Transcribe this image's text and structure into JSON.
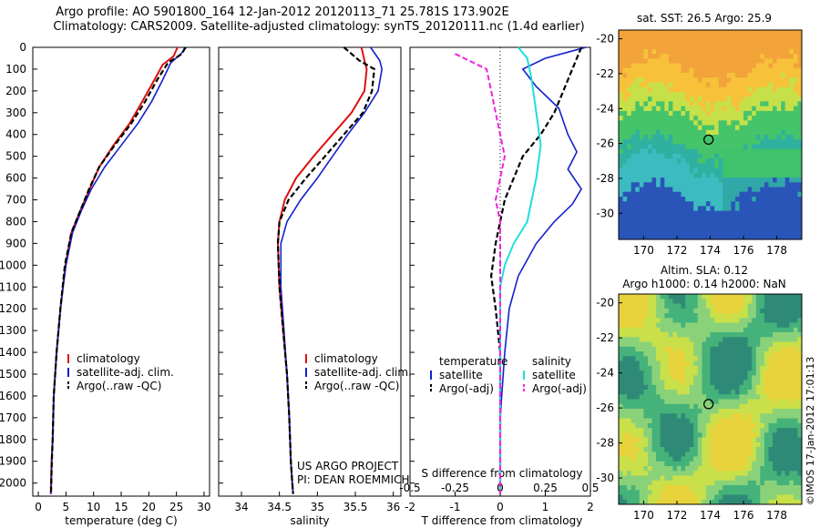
{
  "header": {
    "line1": "Argo profile: AO 5901800_164 12-Jan-2012 20120113_71 25.781S 173.902E",
    "line2": "Climatology: CARS2009. Satellite-adjusted climatology: synTS_20120111.nc (1.4d earlier)"
  },
  "credits": {
    "project": "US ARGO PROJECT",
    "pi": "PI: DEAN ROEMMICH",
    "stamp": "©IMOS 17-Jan-2012 17:01:13"
  },
  "colors": {
    "climatology": "#dd1111",
    "satellite": "#1122cc",
    "argo": "#000000",
    "salinity_satellite": "#22dddd",
    "salinity_argo": "#ee22dd"
  },
  "chart_data": [
    {
      "type": "line",
      "title": "",
      "xlabel": "temperature (deg C)",
      "ylabel": "",
      "xlim": [
        -1,
        31
      ],
      "ylim": [
        2060,
        0
      ],
      "xticks": [
        "0",
        "5",
        "10",
        "15",
        "20",
        "25",
        "30"
      ],
      "yticks": [
        "0",
        "100",
        "200",
        "300",
        "400",
        "500",
        "600",
        "700",
        "800",
        "900",
        "1000",
        "1100",
        "1200",
        "1300",
        "1400",
        "1500",
        "1600",
        "1700",
        "1800",
        "1900",
        "2000"
      ],
      "legend": [
        "climatology",
        "satellite-adj. clim.",
        "Argo(..raw -QC)"
      ],
      "series": [
        {
          "name": "climatology",
          "x": [
            25.2,
            24.5,
            22.5,
            21.0,
            18.8,
            16.5,
            13.6,
            11.0,
            9.3,
            7.6,
            6.0,
            4.9,
            4.0,
            3.3,
            2.8,
            2.6,
            2.4,
            2.3,
            2.25
          ],
          "y": [
            0,
            40,
            80,
            150,
            250,
            350,
            450,
            550,
            650,
            750,
            850,
            1000,
            1200,
            1400,
            1600,
            1800,
            1900,
            2000,
            2050
          ]
        },
        {
          "name": "satellite-adj. clim.",
          "x": [
            26.8,
            25.8,
            24.0,
            22.5,
            20.5,
            18.0,
            15.0,
            12.0,
            9.6,
            7.8,
            6.2,
            5.0,
            4.0,
            3.3,
            2.8,
            2.6,
            2.45,
            2.35,
            2.3
          ],
          "y": [
            0,
            30,
            70,
            150,
            250,
            350,
            450,
            550,
            650,
            750,
            850,
            1000,
            1200,
            1400,
            1600,
            1800,
            1900,
            2000,
            2050
          ]
        },
        {
          "name": "Argo(..raw -QC)",
          "x": [
            26.6,
            26.0,
            23.5,
            21.5,
            19.3,
            16.8,
            13.8,
            11.0,
            9.2,
            7.6,
            6.0,
            4.8,
            4.0,
            3.3,
            2.8,
            2.6,
            2.45,
            2.35,
            2.3
          ],
          "y": [
            0,
            30,
            70,
            150,
            250,
            350,
            450,
            550,
            650,
            750,
            850,
            1000,
            1200,
            1400,
            1600,
            1800,
            1900,
            2000,
            2050
          ]
        }
      ]
    },
    {
      "type": "line",
      "title": "",
      "xlabel": "salinity",
      "ylabel": "",
      "xlim": [
        33.7,
        36.1
      ],
      "ylim": [
        2060,
        0
      ],
      "xticks": [
        "34",
        "34.5",
        "35",
        "35.5",
        "36"
      ],
      "legend": [
        "climatology",
        "satellite-adj. clim.",
        "Argo(..raw -QC)"
      ],
      "series": [
        {
          "name": "climatology",
          "x": [
            35.58,
            35.62,
            35.65,
            35.62,
            35.45,
            35.2,
            34.95,
            34.72,
            34.57,
            34.5,
            34.48,
            34.5,
            34.55,
            34.6,
            34.63,
            34.65,
            34.67,
            34.68
          ],
          "y": [
            0,
            60,
            100,
            200,
            300,
            400,
            500,
            600,
            700,
            800,
            900,
            1100,
            1300,
            1500,
            1700,
            1900,
            2000,
            2050
          ]
        },
        {
          "name": "satellite-adj. clim.",
          "x": [
            35.7,
            35.82,
            35.85,
            35.8,
            35.62,
            35.4,
            35.2,
            35.0,
            34.78,
            34.6,
            34.52,
            34.52,
            34.56,
            34.6,
            34.63,
            34.65,
            34.67,
            34.68
          ],
          "y": [
            0,
            60,
            100,
            200,
            300,
            400,
            500,
            600,
            700,
            800,
            900,
            1100,
            1300,
            1500,
            1700,
            1900,
            2000,
            2050
          ]
        },
        {
          "name": "Argo(..raw -QC)",
          "x": [
            35.35,
            35.55,
            35.75,
            35.72,
            35.6,
            35.35,
            35.1,
            34.85,
            34.62,
            34.5,
            34.48,
            34.5,
            34.55,
            34.6,
            34.63,
            34.65,
            34.67,
            34.68
          ],
          "y": [
            0,
            60,
            100,
            200,
            300,
            400,
            500,
            600,
            700,
            800,
            900,
            1100,
            1300,
            1500,
            1700,
            1900,
            2000,
            2050
          ]
        }
      ]
    },
    {
      "type": "line",
      "title": "",
      "xlabel": "T difference from climatology",
      "xlabel_top": "S difference from climatology",
      "xlim": [
        -2.0,
        2.0
      ],
      "ylim": [
        2060,
        0
      ],
      "xticks": [
        "-2",
        "-1",
        "0",
        "1",
        "2"
      ],
      "xticks_top": [
        "-0.5",
        "-0.25",
        "0",
        "0.25",
        "0.5"
      ],
      "legend_temperature_title": "temperature",
      "legend_salinity_title": "salinity",
      "legend": [
        "satellite",
        "Argo(-adj)",
        "satellite",
        "Argo(-adj)"
      ],
      "series": [
        {
          "name": "satellite",
          "group": "temperature",
          "x": [
            1.9,
            1.0,
            0.5,
            0.8,
            1.3,
            1.5,
            1.7,
            1.5,
            1.8,
            1.6,
            1.2,
            0.8,
            0.4,
            0.2,
            0.1,
            0.0,
            0.0,
            0.0
          ],
          "y": [
            0,
            50,
            100,
            180,
            280,
            400,
            480,
            560,
            650,
            720,
            800,
            900,
            1050,
            1200,
            1400,
            1700,
            1900,
            2050
          ]
        },
        {
          "name": "Argo(-adj)",
          "group": "temperature",
          "x": [
            1.8,
            1.7,
            1.6,
            1.4,
            1.2,
            0.9,
            0.5,
            0.3,
            0.1,
            0.0,
            -0.1,
            -0.2,
            -0.1,
            0.0,
            0.0,
            0.0,
            0.0
          ],
          "y": [
            0,
            50,
            100,
            200,
            300,
            400,
            500,
            600,
            700,
            800,
            900,
            1050,
            1200,
            1400,
            1600,
            1800,
            2050
          ]
        },
        {
          "name": "satellite",
          "group": "salinity",
          "x": [
            0.4,
            0.6,
            0.7,
            0.8,
            0.9,
            0.8,
            0.7,
            0.6,
            0.3,
            0.1,
            0.0,
            0.0,
            0.0
          ],
          "y": [
            0,
            50,
            150,
            300,
            450,
            600,
            700,
            800,
            900,
            1000,
            1100,
            1500,
            2050
          ]
        },
        {
          "name": "Argo(-adj)",
          "group": "salinity",
          "x": [
            -1.0,
            -0.7,
            -0.3,
            -0.2,
            -0.1,
            0.0,
            0.1,
            0.0,
            -0.1,
            0.0,
            0.0,
            0.0
          ],
          "y": [
            30,
            60,
            100,
            200,
            300,
            400,
            500,
            600,
            700,
            800,
            1000,
            2050
          ]
        }
      ]
    },
    {
      "type": "heatmap",
      "title": "sat. SST: 26.5  Argo: 25.9",
      "xlim": [
        168.5,
        179.5
      ],
      "ylim": [
        -31.5,
        -19.5
      ],
      "xticks": [
        "170",
        "172",
        "174",
        "176",
        "178"
      ],
      "yticks": [
        "-20",
        "-22",
        "-24",
        "-26",
        "-28",
        "-30"
      ],
      "marker": {
        "lon": 173.9,
        "lat": -25.78
      }
    },
    {
      "type": "heatmap",
      "title": "Altim. SLA: 0.12",
      "subtitle": "Argo h1000: 0.14 h2000: NaN",
      "xlim": [
        168.5,
        179.5
      ],
      "ylim": [
        -31.5,
        -19.5
      ],
      "xticks": [
        "170",
        "172",
        "174",
        "176",
        "178"
      ],
      "yticks": [
        "-20",
        "-22",
        "-24",
        "-26",
        "-28",
        "-30"
      ],
      "marker": {
        "lon": 173.9,
        "lat": -25.78
      }
    }
  ]
}
